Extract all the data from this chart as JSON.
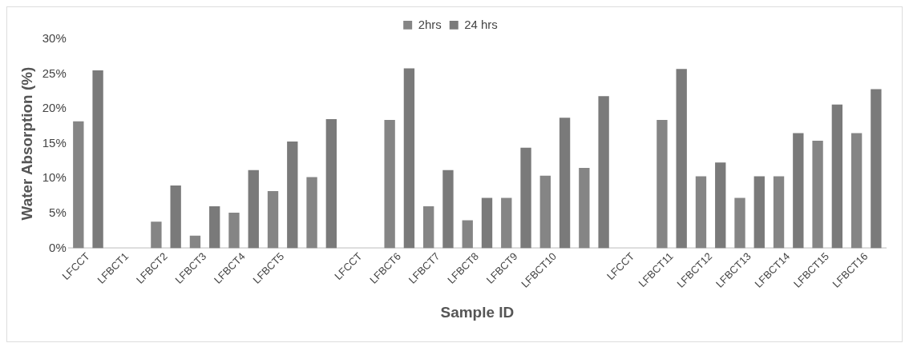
{
  "chart_data": {
    "type": "bar",
    "xlabel": "Sample ID",
    "ylabel": "Water Absorption (%)",
    "categories": [
      "LFCCT",
      "LFBCT1",
      "LFBCT2",
      "LFBCT3",
      "LFBCT4",
      "LFBCT5",
      null,
      "LFCCT",
      "LFBCT6",
      "LFBCT7",
      "LFBCT8",
      "LFBCT9",
      "LFBCT10",
      null,
      "LFCCT",
      "LFBCT11",
      "LFBCT12",
      "LFBCT13",
      "LFBCT14",
      "LFBCT15",
      "LFBCT16"
    ],
    "series": [
      {
        "name": "2hrs",
        "color": "#858585",
        "values": [
          18.2,
          null,
          3.8,
          1.8,
          5.1,
          8.2,
          10.2,
          null,
          18.4,
          6.0,
          4.0,
          7.2,
          10.4,
          11.5,
          null,
          18.4,
          10.3,
          7.2,
          10.3,
          15.4,
          16.5
        ]
      },
      {
        "name": "24 hrs",
        "color": "#7a7a7a",
        "values": [
          25.5,
          null,
          9.0,
          6.0,
          11.2,
          15.3,
          18.5,
          null,
          25.8,
          11.2,
          7.2,
          14.4,
          18.7,
          21.8,
          null,
          25.7,
          12.3,
          10.3,
          16.5,
          20.6,
          22.8
        ]
      }
    ],
    "ylim": [
      0,
      30
    ],
    "yticks": [
      {
        "value": 0,
        "label": "0%"
      },
      {
        "value": 5,
        "label": "5%"
      },
      {
        "value": 10,
        "label": "10%"
      },
      {
        "value": 15,
        "label": "15%"
      },
      {
        "value": 20,
        "label": "20%"
      },
      {
        "value": 25,
        "label": "25%"
      },
      {
        "value": 30,
        "label": "30%"
      }
    ],
    "grid": false,
    "legend": "top"
  }
}
